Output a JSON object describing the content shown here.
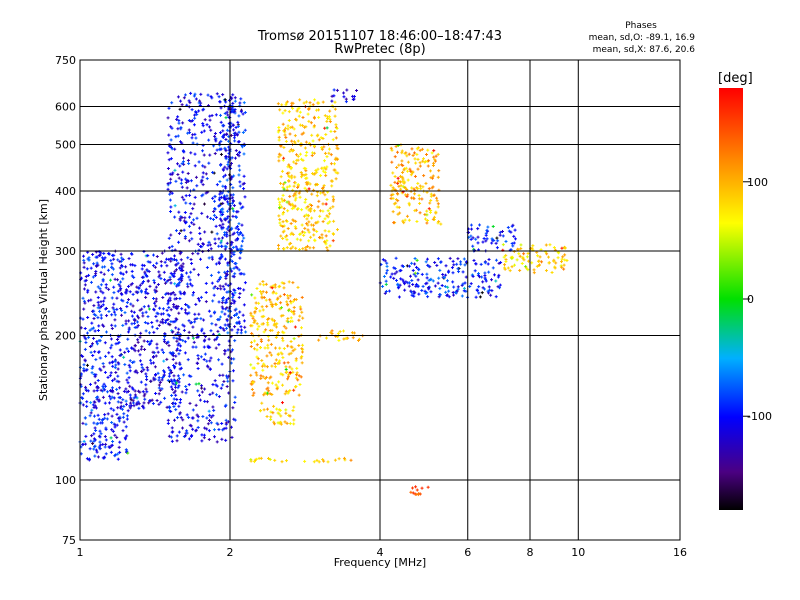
{
  "chart_data": {
    "type": "scatter",
    "title": "Tromsø 20151107 18:46:00–18:47:43",
    "subtitle": "RwPretec (8p)",
    "xlabel": "Frequency [MHz]",
    "ylabel": "Stationary phase Virtual Height [km]",
    "x_scale": "log",
    "y_scale": "log",
    "xlim": [
      1,
      16
    ],
    "ylim": [
      75,
      750
    ],
    "x_ticks": [
      "1",
      "2",
      "4",
      "6",
      "8",
      "10",
      "16"
    ],
    "y_ticks": [
      "75",
      "100",
      "200",
      "300",
      "400",
      "500",
      "600",
      "750"
    ],
    "phase_box": {
      "heading": "Phases",
      "line_o": "mean, sd,O: -89.1, 16.9",
      "line_x": "mean, sd,X:  87.6, 20.6"
    },
    "colorbar": {
      "label": "[deg]",
      "ticks": [
        "100",
        "0",
        "-100"
      ],
      "tick_values": [
        100,
        0,
        -100
      ],
      "range": [
        -180,
        180
      ]
    },
    "clusters": [
      {
        "x": [
          1.0,
          1.25
        ],
        "y": [
          110,
          300
        ],
        "phase": -100
      },
      {
        "x": [
          1.25,
          1.6
        ],
        "y": [
          140,
          300
        ],
        "phase": -110
      },
      {
        "x": [
          1.5,
          2.05
        ],
        "y": [
          120,
          640
        ],
        "phase": -105
      },
      {
        "x": [
          1.9,
          2.15
        ],
        "y": [
          200,
          640
        ],
        "phase": -95
      },
      {
        "x": [
          2.2,
          2.8
        ],
        "y": [
          150,
          260
        ],
        "phase": 95
      },
      {
        "x": [
          2.5,
          3.3
        ],
        "y": [
          300,
          620
        ],
        "phase": 90
      },
      {
        "x": [
          2.3,
          2.7
        ],
        "y": [
          130,
          145
        ],
        "phase": 85
      },
      {
        "x": [
          2.2,
          2.6
        ],
        "y": [
          109,
          111
        ],
        "phase": 80
      },
      {
        "x": [
          2.8,
          3.5
        ],
        "y": [
          109,
          111
        ],
        "phase": 88
      },
      {
        "x": [
          3.0,
          3.7
        ],
        "y": [
          195,
          205
        ],
        "phase": 92
      },
      {
        "x": [
          4.2,
          5.3
        ],
        "y": [
          340,
          500
        ],
        "phase": 100
      },
      {
        "x": [
          4.0,
          7.0
        ],
        "y": [
          240,
          290
        ],
        "phase": -95
      },
      {
        "x": [
          6.0,
          7.5
        ],
        "y": [
          300,
          340
        ],
        "phase": -100
      },
      {
        "x": [
          7.0,
          9.5
        ],
        "y": [
          270,
          310
        ],
        "phase": 80
      },
      {
        "x": [
          3.2,
          3.6
        ],
        "y": [
          610,
          650
        ],
        "phase": -110
      },
      {
        "x": [
          4.6,
          5.0
        ],
        "y": [
          93,
          97
        ],
        "phase": 140
      }
    ]
  }
}
